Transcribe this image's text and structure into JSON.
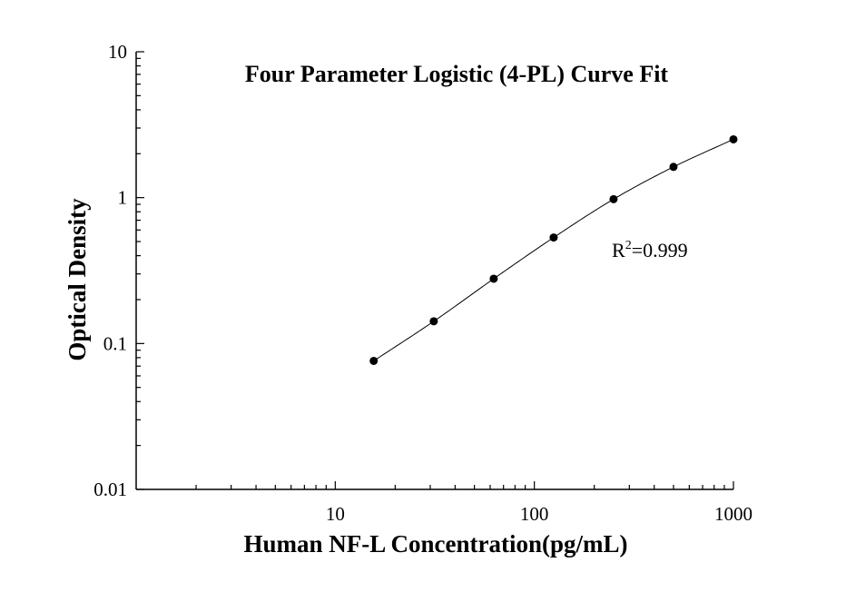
{
  "chart_data": {
    "type": "scatter",
    "title": "Four Parameter Logistic (4-PL) Curve Fit",
    "xlabel": "Human NF-L Concentration(pg/mL)",
    "ylabel": "Optical Density",
    "xscale": "log",
    "yscale": "log",
    "xlim": [
      1,
      1000
    ],
    "ylim": [
      0.01,
      10
    ],
    "x_tick_labels": [
      "10",
      "100",
      "1000"
    ],
    "y_tick_labels": [
      "0.01",
      "0.1",
      "1",
      "10"
    ],
    "grid": false,
    "series": [
      {
        "x": [
          15.6,
          31.25,
          62.5,
          125,
          250,
          500,
          1000
        ],
        "y": [
          0.076,
          0.142,
          0.278,
          0.533,
          0.976,
          1.625,
          2.51
        ]
      }
    ],
    "fit_curve": true,
    "annotation": {
      "text": "R",
      "superscript": "2",
      "suffix": "=0.999"
    }
  }
}
